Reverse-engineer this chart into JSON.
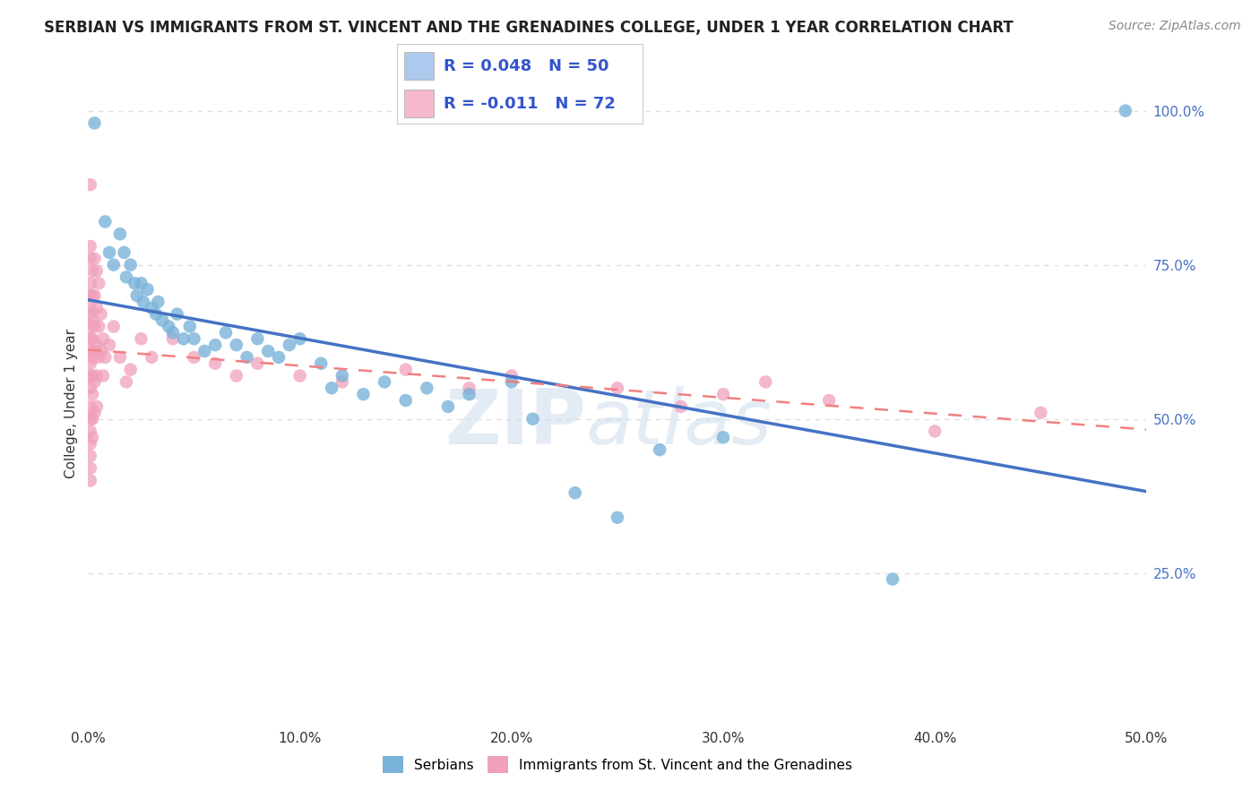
{
  "title": "SERBIAN VS IMMIGRANTS FROM ST. VINCENT AND THE GRENADINES COLLEGE, UNDER 1 YEAR CORRELATION CHART",
  "source": "Source: ZipAtlas.com",
  "ylabel": "College, Under 1 year",
  "xmin": 0.0,
  "xmax": 0.5,
  "ymin": 0.0,
  "ymax": 1.05,
  "xtick_labels": [
    "0.0%",
    "10.0%",
    "20.0%",
    "30.0%",
    "40.0%",
    "50.0%"
  ],
  "xtick_vals": [
    0.0,
    0.1,
    0.2,
    0.3,
    0.4,
    0.5
  ],
  "ytick_labels": [
    "25.0%",
    "50.0%",
    "75.0%",
    "100.0%"
  ],
  "ytick_vals": [
    0.25,
    0.5,
    0.75,
    1.0
  ],
  "legend1_label": "R = 0.048   N = 50",
  "legend2_label": "R = -0.011   N = 72",
  "legend1_color": "#adc9ed",
  "legend2_color": "#f5b8cc",
  "series1_name": "Serbians",
  "series2_name": "Immigrants from St. Vincent and the Grenadines",
  "series1_dot_color": "#7ab3d9",
  "series2_dot_color": "#f0a0bb",
  "series1_line_color": "#4472c4",
  "series2_line_color": "#f08080",
  "series1_r": 0.048,
  "series2_r": -0.011,
  "series1_points": [
    [
      0.003,
      0.98
    ],
    [
      0.008,
      0.82
    ],
    [
      0.01,
      0.77
    ],
    [
      0.012,
      0.75
    ],
    [
      0.015,
      0.8
    ],
    [
      0.017,
      0.77
    ],
    [
      0.018,
      0.73
    ],
    [
      0.02,
      0.75
    ],
    [
      0.022,
      0.72
    ],
    [
      0.023,
      0.7
    ],
    [
      0.025,
      0.72
    ],
    [
      0.026,
      0.69
    ],
    [
      0.028,
      0.71
    ],
    [
      0.03,
      0.68
    ],
    [
      0.032,
      0.67
    ],
    [
      0.033,
      0.69
    ],
    [
      0.035,
      0.66
    ],
    [
      0.038,
      0.65
    ],
    [
      0.04,
      0.64
    ],
    [
      0.042,
      0.67
    ],
    [
      0.045,
      0.63
    ],
    [
      0.048,
      0.65
    ],
    [
      0.05,
      0.63
    ],
    [
      0.055,
      0.61
    ],
    [
      0.06,
      0.62
    ],
    [
      0.065,
      0.64
    ],
    [
      0.07,
      0.62
    ],
    [
      0.075,
      0.6
    ],
    [
      0.08,
      0.63
    ],
    [
      0.085,
      0.61
    ],
    [
      0.09,
      0.6
    ],
    [
      0.095,
      0.62
    ],
    [
      0.1,
      0.63
    ],
    [
      0.11,
      0.59
    ],
    [
      0.115,
      0.55
    ],
    [
      0.12,
      0.57
    ],
    [
      0.13,
      0.54
    ],
    [
      0.14,
      0.56
    ],
    [
      0.15,
      0.53
    ],
    [
      0.16,
      0.55
    ],
    [
      0.17,
      0.52
    ],
    [
      0.18,
      0.54
    ],
    [
      0.2,
      0.56
    ],
    [
      0.21,
      0.5
    ],
    [
      0.23,
      0.38
    ],
    [
      0.25,
      0.34
    ],
    [
      0.27,
      0.45
    ],
    [
      0.3,
      0.47
    ],
    [
      0.38,
      0.24
    ],
    [
      0.49,
      1.0
    ]
  ],
  "series2_points": [
    [
      0.001,
      0.88
    ],
    [
      0.001,
      0.78
    ],
    [
      0.001,
      0.76
    ],
    [
      0.001,
      0.72
    ],
    [
      0.001,
      0.7
    ],
    [
      0.001,
      0.68
    ],
    [
      0.001,
      0.67
    ],
    [
      0.001,
      0.65
    ],
    [
      0.001,
      0.63
    ],
    [
      0.001,
      0.61
    ],
    [
      0.001,
      0.59
    ],
    [
      0.001,
      0.57
    ],
    [
      0.001,
      0.55
    ],
    [
      0.001,
      0.52
    ],
    [
      0.001,
      0.5
    ],
    [
      0.001,
      0.48
    ],
    [
      0.001,
      0.46
    ],
    [
      0.001,
      0.44
    ],
    [
      0.001,
      0.42
    ],
    [
      0.001,
      0.4
    ],
    [
      0.002,
      0.74
    ],
    [
      0.002,
      0.7
    ],
    [
      0.002,
      0.66
    ],
    [
      0.002,
      0.63
    ],
    [
      0.002,
      0.6
    ],
    [
      0.002,
      0.57
    ],
    [
      0.002,
      0.54
    ],
    [
      0.002,
      0.5
    ],
    [
      0.002,
      0.47
    ],
    [
      0.003,
      0.76
    ],
    [
      0.003,
      0.7
    ],
    [
      0.003,
      0.65
    ],
    [
      0.003,
      0.61
    ],
    [
      0.003,
      0.56
    ],
    [
      0.003,
      0.51
    ],
    [
      0.004,
      0.74
    ],
    [
      0.004,
      0.68
    ],
    [
      0.004,
      0.62
    ],
    [
      0.004,
      0.57
    ],
    [
      0.004,
      0.52
    ],
    [
      0.005,
      0.72
    ],
    [
      0.005,
      0.65
    ],
    [
      0.005,
      0.6
    ],
    [
      0.006,
      0.67
    ],
    [
      0.006,
      0.61
    ],
    [
      0.007,
      0.63
    ],
    [
      0.007,
      0.57
    ],
    [
      0.008,
      0.6
    ],
    [
      0.01,
      0.62
    ],
    [
      0.012,
      0.65
    ],
    [
      0.015,
      0.6
    ],
    [
      0.018,
      0.56
    ],
    [
      0.02,
      0.58
    ],
    [
      0.025,
      0.63
    ],
    [
      0.03,
      0.6
    ],
    [
      0.04,
      0.63
    ],
    [
      0.05,
      0.6
    ],
    [
      0.06,
      0.59
    ],
    [
      0.07,
      0.57
    ],
    [
      0.08,
      0.59
    ],
    [
      0.1,
      0.57
    ],
    [
      0.12,
      0.56
    ],
    [
      0.15,
      0.58
    ],
    [
      0.18,
      0.55
    ],
    [
      0.2,
      0.57
    ],
    [
      0.25,
      0.55
    ],
    [
      0.28,
      0.52
    ],
    [
      0.3,
      0.54
    ],
    [
      0.32,
      0.56
    ],
    [
      0.35,
      0.53
    ],
    [
      0.4,
      0.48
    ],
    [
      0.45,
      0.51
    ]
  ],
  "watermark_zip": "ZIP",
  "watermark_atlas": "atlas",
  "bg_color": "#ffffff",
  "grid_color": "#e0e0e0",
  "title_fontsize": 12,
  "axis_label_fontsize": 11,
  "tick_fontsize": 11,
  "legend_fontsize": 13,
  "source_fontsize": 10
}
